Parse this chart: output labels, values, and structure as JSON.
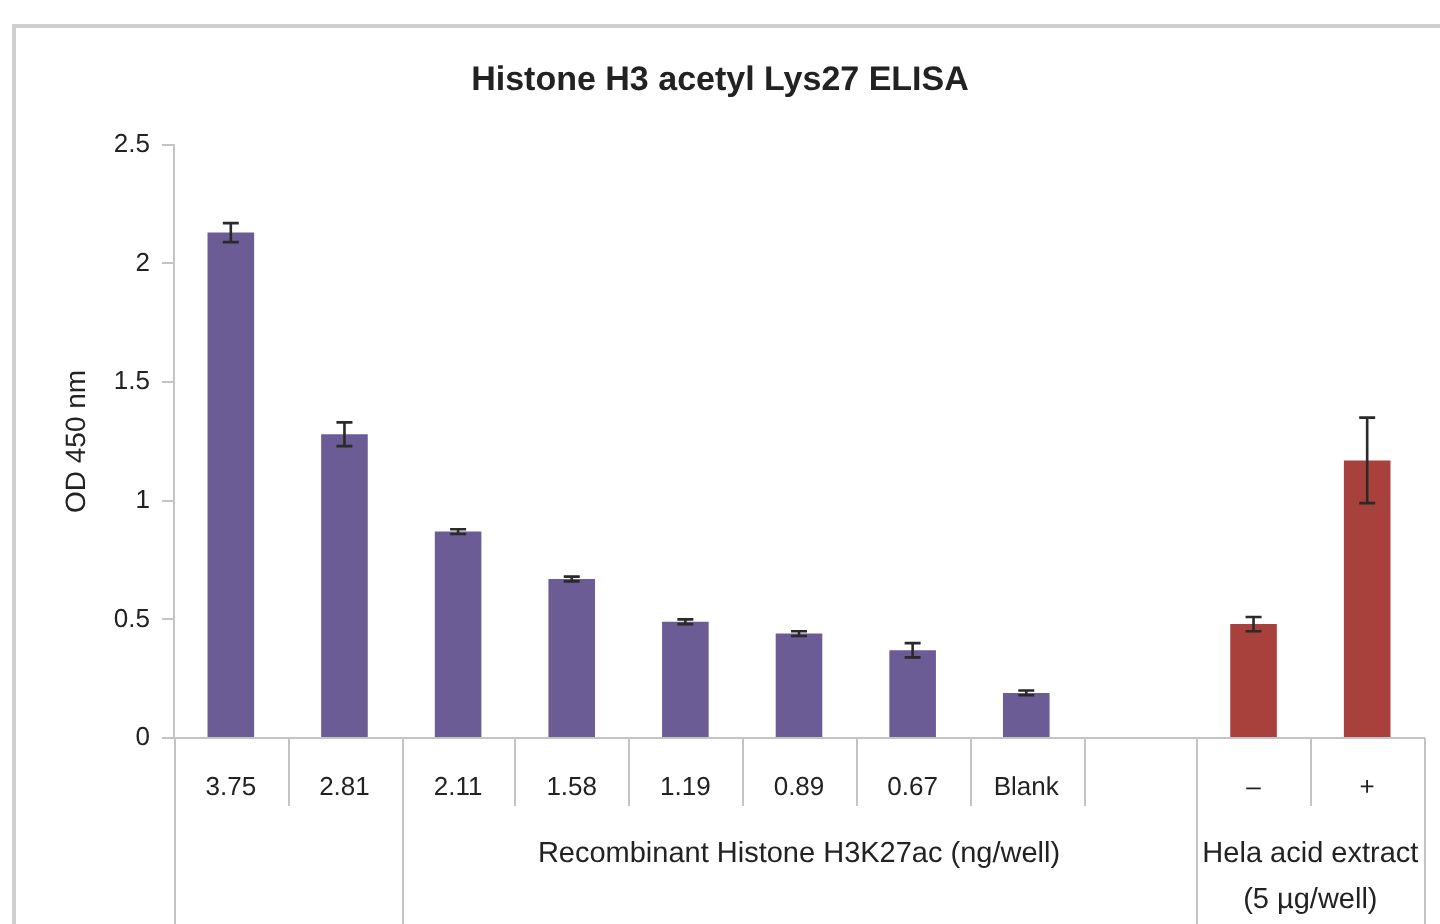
{
  "chart_data": {
    "type": "bar",
    "title": "Histone H3 acetyl Lys27 ELISA",
    "ylabel": "OD 450 nm",
    "categories": [
      "3.75",
      "2.81",
      "2.11",
      "1.58",
      "1.19",
      "0.89",
      "0.67",
      "Blank",
      null,
      "–",
      "+"
    ],
    "values": [
      2.13,
      1.28,
      0.87,
      0.67,
      0.49,
      0.44,
      0.37,
      0.19,
      null,
      0.48,
      1.17
    ],
    "errors": [
      0.04,
      0.05,
      0.01,
      0.01,
      0.01,
      0.01,
      0.03,
      0.01,
      null,
      0.03,
      0.18
    ],
    "colors": [
      "#6b5c96",
      "#6b5c96",
      "#6b5c96",
      "#6b5c96",
      "#6b5c96",
      "#6b5c96",
      "#6b5c96",
      "#6b5c96",
      null,
      "#a8413c",
      "#a8413c"
    ],
    "ylim": [
      0,
      2.5
    ],
    "yticks": [
      0,
      0.5,
      1,
      1.5,
      2,
      2.5
    ],
    "annotations": [
      "Recombinant Histone H3K27ac (ng/well)",
      "Hela acid extract (5 µg/well)"
    ]
  }
}
